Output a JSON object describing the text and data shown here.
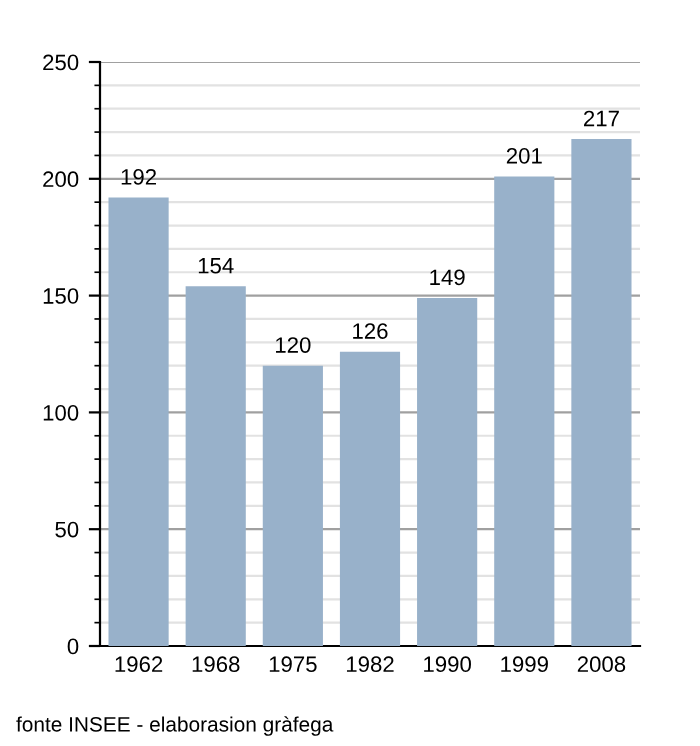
{
  "chart_data": {
    "type": "bar",
    "categories": [
      "1962",
      "1968",
      "1975",
      "1982",
      "1990",
      "1999",
      "2008"
    ],
    "values": [
      192,
      154,
      120,
      126,
      149,
      201,
      217
    ],
    "color": "#98b1ca",
    "ylim": [
      0,
      250
    ],
    "yticks": [
      0,
      50,
      100,
      150,
      200,
      250
    ],
    "grid": "y",
    "data_labels": true,
    "annotations": [
      "fonte INSEE - elaborasion gràfega"
    ]
  }
}
